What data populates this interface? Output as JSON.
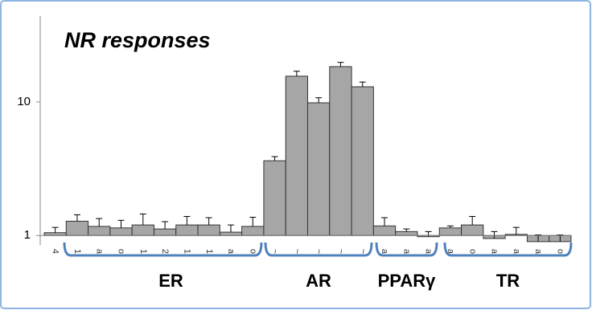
{
  "chart_data": {
    "type": "bar",
    "title": "NR responses",
    "log_scale": true,
    "grid": false,
    "color": "#a6a6a6",
    "categories": [
      "4",
      "1",
      "a",
      "o",
      "1",
      "2",
      "1",
      "1",
      "a",
      "o",
      "~",
      "~",
      "~",
      "~",
      "~",
      "a",
      "a",
      "a",
      "a",
      "o",
      "a",
      "a",
      "a",
      "o"
    ],
    "values": [
      1.05,
      1.28,
      1.17,
      1.14,
      1.2,
      1.12,
      1.2,
      1.2,
      1.06,
      1.17,
      3.63,
      15.6,
      9.86,
      18.4,
      13.0,
      1.18,
      1.07,
      0.98,
      1.14,
      1.2,
      0.95,
      1.02,
      0.9,
      0.9
    ],
    "errors": [
      0.1,
      0.15,
      0.17,
      0.16,
      0.25,
      0.15,
      0.19,
      0.16,
      0.14,
      0.2,
      0.27,
      1.4,
      0.9,
      1.4,
      1.1,
      0.18,
      0.05,
      0.09,
      0.04,
      0.19,
      0.12,
      0.13,
      0.11,
      0.11
    ],
    "groups": [
      "ER",
      "AR",
      "PPARγ",
      "TR"
    ],
    "ylim": [
      0.85,
      44
    ],
    "yticks": [
      1,
      10
    ]
  }
}
